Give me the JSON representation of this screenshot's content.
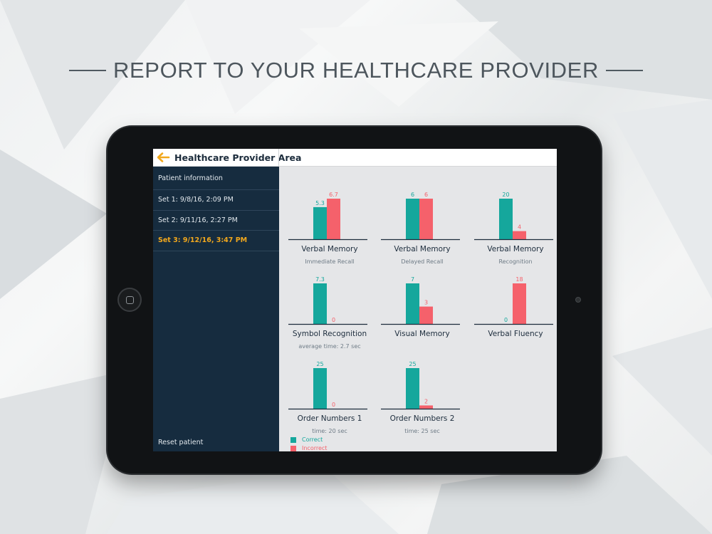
{
  "headline": "REPORT TO YOUR HEALTHCARE PROVIDER",
  "app": {
    "title": "Healthcare Provider Area"
  },
  "colors": {
    "correct": "#15a79c",
    "incorrect": "#f5616b",
    "accent": "#f2a81d",
    "sidebar_bg": "#162c3f"
  },
  "sidebar": {
    "items": [
      {
        "label": "Patient information",
        "active": false
      },
      {
        "label": "Set 1: 9/8/16, 2:09 PM",
        "active": false
      },
      {
        "label": "Set 2: 9/11/16, 2:27 PM",
        "active": false
      },
      {
        "label": "Set 3: 9/12/16, 3:47 PM",
        "active": true
      }
    ],
    "reset_label": "Reset patient"
  },
  "chart_data": [
    {
      "type": "bar",
      "title": "Verbal Memory",
      "subtitle": "Immediate Recall",
      "categories": [
        "Correct",
        "Incorrect"
      ],
      "values": [
        5.3,
        6.7
      ]
    },
    {
      "type": "bar",
      "title": "Verbal Memory",
      "subtitle": "Delayed Recall",
      "categories": [
        "Correct",
        "Incorrect"
      ],
      "values": [
        6,
        6
      ]
    },
    {
      "type": "bar",
      "title": "Verbal Memory",
      "subtitle": "Recognition",
      "categories": [
        "Correct",
        "Incorrect"
      ],
      "values": [
        20,
        4
      ]
    },
    {
      "type": "bar",
      "title": "Symbol Recognition",
      "subtitle": "average time: 2.7 sec",
      "categories": [
        "Correct",
        "Incorrect"
      ],
      "values": [
        7.3,
        0
      ]
    },
    {
      "type": "bar",
      "title": "Visual Memory",
      "subtitle": "",
      "categories": [
        "Correct",
        "Incorrect"
      ],
      "values": [
        7,
        3
      ]
    },
    {
      "type": "bar",
      "title": "Verbal Fluency",
      "subtitle": "",
      "categories": [
        "Correct",
        "Incorrect"
      ],
      "values": [
        0,
        18
      ]
    },
    {
      "type": "bar",
      "title": "Order Numbers 1",
      "subtitle": "time: 20 sec",
      "categories": [
        "Correct",
        "Incorrect"
      ],
      "values": [
        25,
        0
      ]
    },
    {
      "type": "bar",
      "title": "Order Numbers 2",
      "subtitle": "time: 25 sec",
      "categories": [
        "Correct",
        "Incorrect"
      ],
      "values": [
        25,
        2
      ]
    }
  ],
  "legend": [
    {
      "label": "Correct",
      "color": "#15a79c"
    },
    {
      "label": "Incorrect",
      "color": "#f5616b"
    }
  ]
}
